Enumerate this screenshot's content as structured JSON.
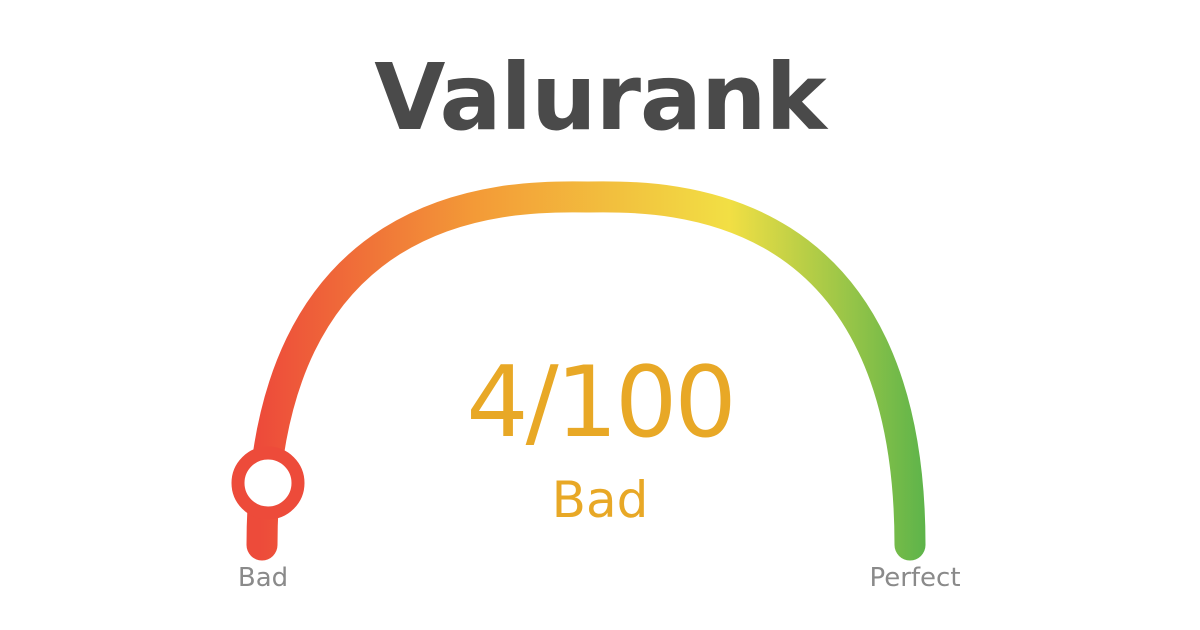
{
  "brand": {
    "title": "Valurank"
  },
  "gauge": {
    "score": 4,
    "max": 100,
    "score_text": "4/100",
    "rating": "Bad",
    "min_label": "Bad",
    "max_label": "Perfect",
    "colors": {
      "red": "#ed4b3a",
      "orange": "#f39a37",
      "yellow": "#f2df44",
      "green": "#5ab34a",
      "score_text": "#e8a826",
      "title": "#4a4a4a",
      "end_labels": "#8a8a8a"
    }
  }
}
